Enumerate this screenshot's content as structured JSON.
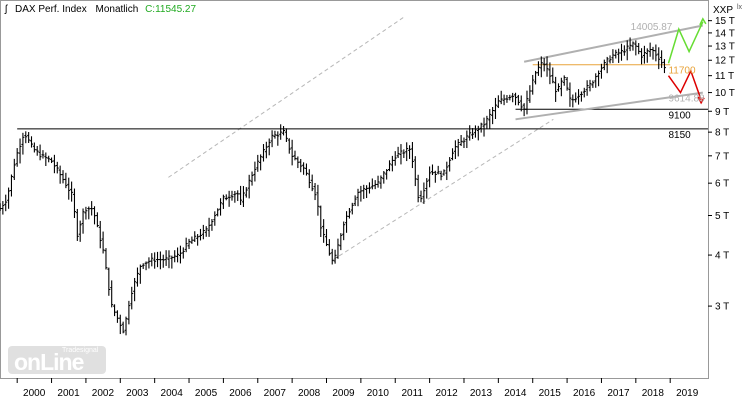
{
  "chart_data": {
    "type": "ohlc",
    "header": {
      "instrument": "DAX Perf. Index",
      "period": "Monatlich",
      "last_label": "C:11545.27"
    },
    "y_unit_label": "XXP",
    "y_scale": "log",
    "ylim": [
      2000,
      15400
    ],
    "y_ticks": [
      {
        "value": 15000,
        "label": "15 T"
      },
      {
        "value": 14000,
        "label": "14 T"
      },
      {
        "value": 13000,
        "label": "13 T"
      },
      {
        "value": 12000,
        "label": "12 T"
      },
      {
        "value": 11000,
        "label": "11 T"
      },
      {
        "value": 10000,
        "label": "10 T"
      },
      {
        "value": 9000,
        "label": "9 T"
      },
      {
        "value": 8000,
        "label": "8 T"
      },
      {
        "value": 7000,
        "label": "7 T"
      },
      {
        "value": 6000,
        "label": "6 T"
      },
      {
        "value": 5000,
        "label": "5 T"
      },
      {
        "value": 4000,
        "label": "4 T"
      },
      {
        "value": 3000,
        "label": "3 T"
      }
    ],
    "x_range": [
      1999.5,
      2020.1
    ],
    "x_ticks": [
      "2000",
      "2001",
      "2002",
      "2003",
      "2004",
      "2005",
      "2006",
      "2007",
      "2008",
      "2009",
      "2010",
      "2011",
      "2012",
      "2013",
      "2014",
      "2015",
      "2016",
      "2017",
      "2018",
      "2019"
    ],
    "anchors": [
      [
        1999.5,
        5200
      ],
      [
        1999.7,
        5500
      ],
      [
        1999.95,
        6900
      ],
      [
        2000.2,
        8000
      ],
      [
        2000.45,
        7300
      ],
      [
        2000.7,
        7000
      ],
      [
        2001.0,
        6800
      ],
      [
        2001.3,
        6200
      ],
      [
        2001.6,
        5600
      ],
      [
        2001.75,
        4500
      ],
      [
        2001.95,
        5200
      ],
      [
        2002.2,
        5200
      ],
      [
        2002.5,
        4100
      ],
      [
        2002.75,
        3000
      ],
      [
        2003.1,
        2600
      ],
      [
        2003.3,
        3200
      ],
      [
        2003.6,
        3800
      ],
      [
        2003.95,
        3900
      ],
      [
        2004.3,
        3900
      ],
      [
        2004.7,
        4000
      ],
      [
        2005.0,
        4300
      ],
      [
        2005.5,
        4600
      ],
      [
        2006.0,
        5500
      ],
      [
        2006.4,
        5700
      ],
      [
        2006.5,
        5400
      ],
      [
        2006.9,
        6500
      ],
      [
        2007.4,
        7800
      ],
      [
        2007.75,
        8000
      ],
      [
        2008.0,
        7000
      ],
      [
        2008.35,
        6500
      ],
      [
        2008.7,
        5600
      ],
      [
        2008.85,
        4600
      ],
      [
        2009.2,
        3800
      ],
      [
        2009.5,
        4800
      ],
      [
        2009.9,
        5700
      ],
      [
        2010.5,
        6000
      ],
      [
        2011.0,
        7000
      ],
      [
        2011.45,
        7300
      ],
      [
        2011.6,
        6000
      ],
      [
        2011.7,
        5400
      ],
      [
        2012.0,
        6400
      ],
      [
        2012.4,
        6300
      ],
      [
        2012.7,
        7300
      ],
      [
        2013.1,
        7800
      ],
      [
        2013.6,
        8400
      ],
      [
        2014.0,
        9500
      ],
      [
        2014.45,
        9900
      ],
      [
        2014.75,
        9100
      ],
      [
        2015.1,
        11300
      ],
      [
        2015.3,
        11900
      ],
      [
        2015.5,
        11000
      ],
      [
        2015.7,
        10000
      ],
      [
        2015.9,
        10900
      ],
      [
        2016.1,
        9500
      ],
      [
        2016.4,
        10000
      ],
      [
        2016.7,
        10500
      ],
      [
        2016.95,
        11400
      ],
      [
        2017.3,
        12300
      ],
      [
        2017.6,
        12600
      ],
      [
        2017.95,
        13200
      ],
      [
        2018.15,
        12300
      ],
      [
        2018.45,
        12800
      ],
      [
        2018.7,
        12100
      ],
      [
        2018.85,
        11400
      ]
    ],
    "annotations": {
      "peak_label": "14005.87",
      "level_11700": "11700",
      "level_9614": "9614.88",
      "level_9100": "9100",
      "level_8150": "8150"
    },
    "colors": {
      "bars": "#000000",
      "support_lines": "#000000",
      "channel": "#b0b0b0",
      "level_11700": "#e8a33a",
      "bull_path": "#66dd33",
      "bear_path": "#dd0000",
      "muted_label": "#b0b0b0"
    },
    "channel": {
      "upper": [
        [
          2014.75,
          11900
        ],
        [
          2019.95,
          14600
        ]
      ],
      "lower": [
        [
          2014.5,
          8600
        ],
        [
          2019.95,
          10000
        ]
      ]
    },
    "dashed_channel": {
      "upper": [
        [
          2004.4,
          6200
        ],
        [
          2011.3,
          15400
        ]
      ],
      "lower": [
        [
          2009.2,
          3900
        ],
        [
          2015.6,
          8600
        ]
      ]
    },
    "horizontal_levels": [
      {
        "value": 8150,
        "from": 2000.0,
        "to": 2020.1,
        "color": "#000000"
      },
      {
        "value": 9100,
        "from": 2014.5,
        "to": 2020.1,
        "color": "#000000"
      },
      {
        "value": 11700,
        "from": 2015.0,
        "to": 2019.0,
        "color": "#e8a33a"
      }
    ],
    "bull_path": [
      [
        2018.95,
        11800
      ],
      [
        2019.25,
        14300
      ],
      [
        2019.55,
        12600
      ],
      [
        2019.95,
        14900
      ]
    ],
    "bear_path": [
      [
        2018.95,
        11000
      ],
      [
        2019.3,
        10000
      ],
      [
        2019.6,
        11300
      ],
      [
        2019.9,
        9600
      ]
    ]
  },
  "logo": {
    "main": "onLine",
    "sub": "Tradesignal"
  },
  "corner_glyph": "ʃ"
}
